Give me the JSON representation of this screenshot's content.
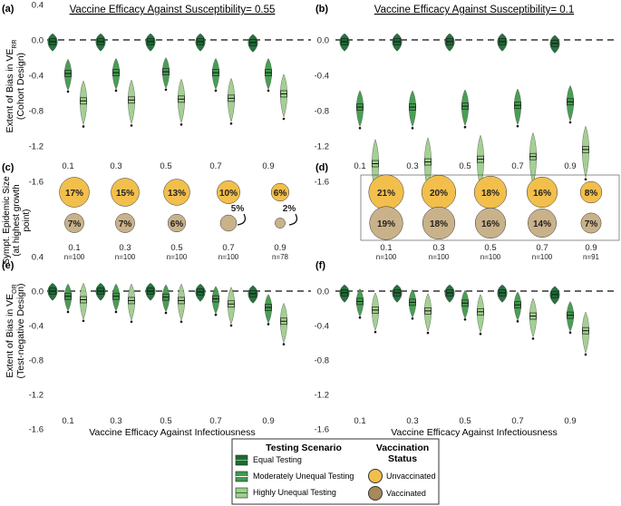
{
  "colors": {
    "equal": "#1d6b35",
    "moderate": "#3f9a4a",
    "high": "#9fcf8c",
    "unvaccinated": "#f2bf4c",
    "vaccinated": "#c9b28a",
    "dashed": "#666666"
  },
  "titles": {
    "left": "Vaccine Efficacy Against Susceptibility= 0.55",
    "right": "Vaccine Efficacy Against Susceptibility= 0.1"
  },
  "ylabels": {
    "cohort": [
      "Extent of Bias in VE",
      "(Cohort Design)"
    ],
    "cohort_sub": "RR",
    "epidemic": [
      "Sympt. Epidemic Size",
      "(at highest growth",
      "point)"
    ],
    "tn": [
      "Extent of Bias in VE",
      "(Test-negative Design)"
    ],
    "tn_sub": "OR"
  },
  "xlabel": "Vaccine Efficacy Against Infectiousness",
  "legend": {
    "testing_title": "Testing Scenario",
    "testing": [
      "Equal Testing",
      "Moderately Unequal Testing",
      "Highly Unequal Testing"
    ],
    "vacc_title": "Vaccination Status",
    "vacc_title_l1": "Vaccination",
    "vacc_title_l2": "Status",
    "vacc": [
      "Unvaccinated",
      "Vaccinated"
    ]
  },
  "chart_data": [
    {
      "panel": "(a)",
      "type": "violin",
      "title": "Vaccine Efficacy Against Susceptibility= 0.55",
      "ylabel": "Extent of Bias in VE_RR (Cohort Design)",
      "ylim": [
        -1.8,
        0.3
      ],
      "yticks": [
        0.4,
        0.0,
        -0.4,
        -0.8,
        -1.2,
        -1.6
      ],
      "categories": [
        "0.1",
        "0.3",
        "0.5",
        "0.7",
        "0.9"
      ],
      "series": [
        {
          "name": "Equal Testing",
          "values": [
            -0.02,
            -0.02,
            -0.02,
            -0.02,
            -0.03
          ]
        },
        {
          "name": "Moderately Unequal Testing",
          "values": [
            -0.38,
            -0.37,
            -0.36,
            -0.37,
            -0.37
          ]
        },
        {
          "name": "Highly Unequal Testing",
          "values": [
            -0.69,
            -0.68,
            -0.67,
            -0.66,
            -0.61
          ]
        }
      ]
    },
    {
      "panel": "(b)",
      "type": "violin",
      "title": "Vaccine Efficacy Against Susceptibility= 0.1",
      "ylim": [
        -1.8,
        0.3
      ],
      "yticks": [
        0.0,
        -0.4,
        -0.8,
        -1.2,
        -1.6
      ],
      "categories": [
        "0.1",
        "0.3",
        "0.5",
        "0.7",
        "0.9"
      ],
      "series": [
        {
          "name": "Equal Testing",
          "values": [
            -0.02,
            -0.02,
            -0.02,
            -0.02,
            -0.04
          ]
        },
        {
          "name": "Moderately Unequal Testing",
          "values": [
            -0.76,
            -0.76,
            -0.75,
            -0.74,
            -0.7
          ]
        },
        {
          "name": "Highly Unequal Testing",
          "values": [
            -1.4,
            -1.38,
            -1.35,
            -1.32,
            -1.24
          ]
        }
      ]
    },
    {
      "panel": "(c)",
      "type": "bubble",
      "categories": [
        "0.1",
        "0.3",
        "0.5",
        "0.7",
        "0.9"
      ],
      "n": [
        "n=100",
        "n=100",
        "n=100",
        "n=100",
        "n=78"
      ],
      "unvaccinated": [
        17,
        15,
        13,
        10,
        6
      ],
      "vaccinated": [
        7,
        7,
        6,
        5,
        2
      ],
      "unvaccinated_labels": [
        "17%",
        "15%",
        "13%",
        "10%",
        "6%"
      ],
      "vaccinated_labels": [
        "7%",
        "7%",
        "6%",
        "5%",
        "2%"
      ]
    },
    {
      "panel": "(d)",
      "type": "bubble",
      "categories": [
        "0.1",
        "0.3",
        "0.5",
        "0.7",
        "0.9"
      ],
      "n": [
        "n=100",
        "n=100",
        "n=100",
        "n=100",
        "n=91"
      ],
      "unvaccinated": [
        21,
        20,
        18,
        16,
        8
      ],
      "vaccinated": [
        19,
        18,
        16,
        14,
        7
      ],
      "unvaccinated_labels": [
        "21%",
        "20%",
        "18%",
        "16%",
        "8%"
      ],
      "vaccinated_labels": [
        "19%",
        "18%",
        "16%",
        "14%",
        "7%"
      ]
    },
    {
      "panel": "(e)",
      "type": "violin",
      "ylabel": "Extent of Bias in VE_OR (Test-negative Design)",
      "ylim": [
        -1.8,
        0.3
      ],
      "yticks": [
        0.4,
        0.0,
        -0.4,
        -0.8,
        -1.2,
        -1.6
      ],
      "xlabel": "Vaccine Efficacy Against Infectiousness",
      "categories": [
        "0.1",
        "0.3",
        "0.5",
        "0.7",
        "0.9"
      ],
      "series": [
        {
          "name": "Equal Testing",
          "values": [
            0.0,
            0.0,
            0.0,
            -0.01,
            -0.03
          ]
        },
        {
          "name": "Moderately Unequal Testing",
          "values": [
            -0.06,
            -0.06,
            -0.07,
            -0.09,
            -0.19
          ]
        },
        {
          "name": "Highly Unequal Testing",
          "values": [
            -0.1,
            -0.11,
            -0.11,
            -0.15,
            -0.35
          ]
        }
      ]
    },
    {
      "panel": "(f)",
      "type": "violin",
      "ylim": [
        -1.8,
        0.3
      ],
      "yticks": [
        0.0,
        -0.4,
        -0.8,
        -1.2,
        -1.6
      ],
      "xlabel": "Vaccine Efficacy Against Infectiousness",
      "categories": [
        "0.1",
        "0.3",
        "0.5",
        "0.7",
        "0.9"
      ],
      "series": [
        {
          "name": "Equal Testing",
          "values": [
            -0.02,
            -0.02,
            -0.02,
            -0.02,
            -0.04
          ]
        },
        {
          "name": "Moderately Unequal Testing",
          "values": [
            -0.12,
            -0.13,
            -0.14,
            -0.16,
            -0.28
          ]
        },
        {
          "name": "Highly Unequal Testing",
          "values": [
            -0.22,
            -0.23,
            -0.24,
            -0.29,
            -0.46
          ]
        }
      ]
    }
  ]
}
